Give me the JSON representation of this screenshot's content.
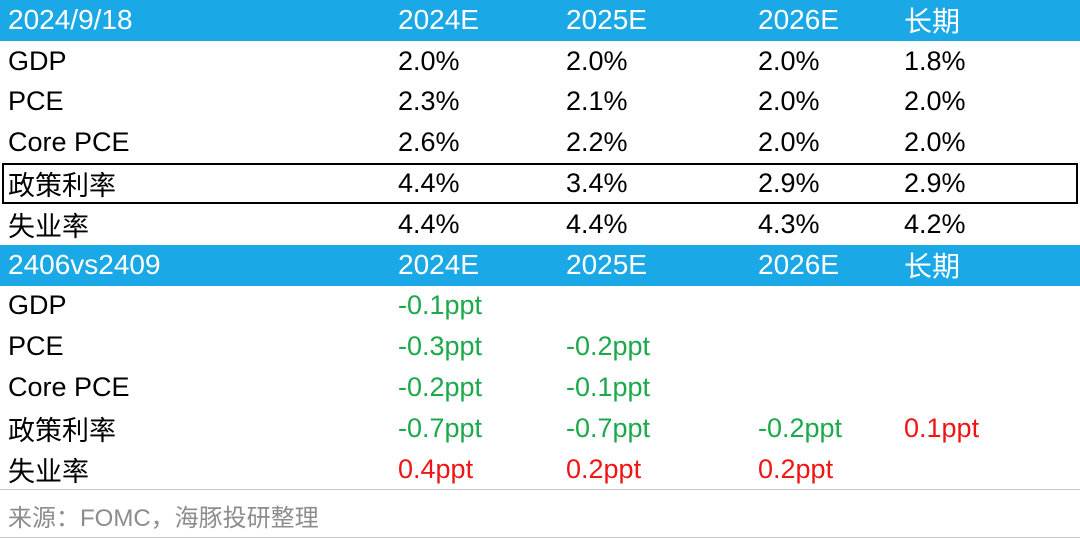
{
  "table1": {
    "header": [
      "2024/9/18",
      "2024E",
      "2025E",
      "2026E",
      "长期"
    ],
    "rows": [
      {
        "label": "GDP",
        "values": [
          "2.0%",
          "2.0%",
          "2.0%",
          "1.8%"
        ]
      },
      {
        "label": "PCE",
        "values": [
          "2.3%",
          "2.1%",
          "2.0%",
          "2.0%"
        ]
      },
      {
        "label": "Core PCE",
        "values": [
          "2.6%",
          "2.2%",
          "2.0%",
          "2.0%"
        ]
      },
      {
        "label": "政策利率",
        "values": [
          "4.4%",
          "3.4%",
          "2.9%",
          "2.9%"
        ]
      },
      {
        "label": "失业率",
        "values": [
          "4.4%",
          "4.4%",
          "4.3%",
          "4.2%"
        ]
      }
    ]
  },
  "table2": {
    "header": [
      "2406vs2409",
      "2024E",
      "2025E",
      "2026E",
      "长期"
    ],
    "rows": [
      {
        "label": "GDP",
        "values": [
          "-0.1ppt",
          "",
          "",
          ""
        ]
      },
      {
        "label": "PCE",
        "values": [
          "-0.3ppt",
          "-0.2ppt",
          "",
          ""
        ]
      },
      {
        "label": "Core PCE",
        "values": [
          "-0.2ppt",
          "-0.1ppt",
          "",
          ""
        ]
      },
      {
        "label": "政策利率",
        "values": [
          "-0.7ppt",
          "-0.7ppt",
          "-0.2ppt",
          "0.1ppt"
        ]
      },
      {
        "label": "失业率",
        "values": [
          "0.4ppt",
          "0.2ppt",
          "0.2ppt",
          ""
        ]
      }
    ]
  },
  "colors": {
    "header_bg": "#1aa9e6",
    "negative": "#1ca84b",
    "positive": "#f01414"
  },
  "source": "来源：FOMC，海豚投研整理"
}
